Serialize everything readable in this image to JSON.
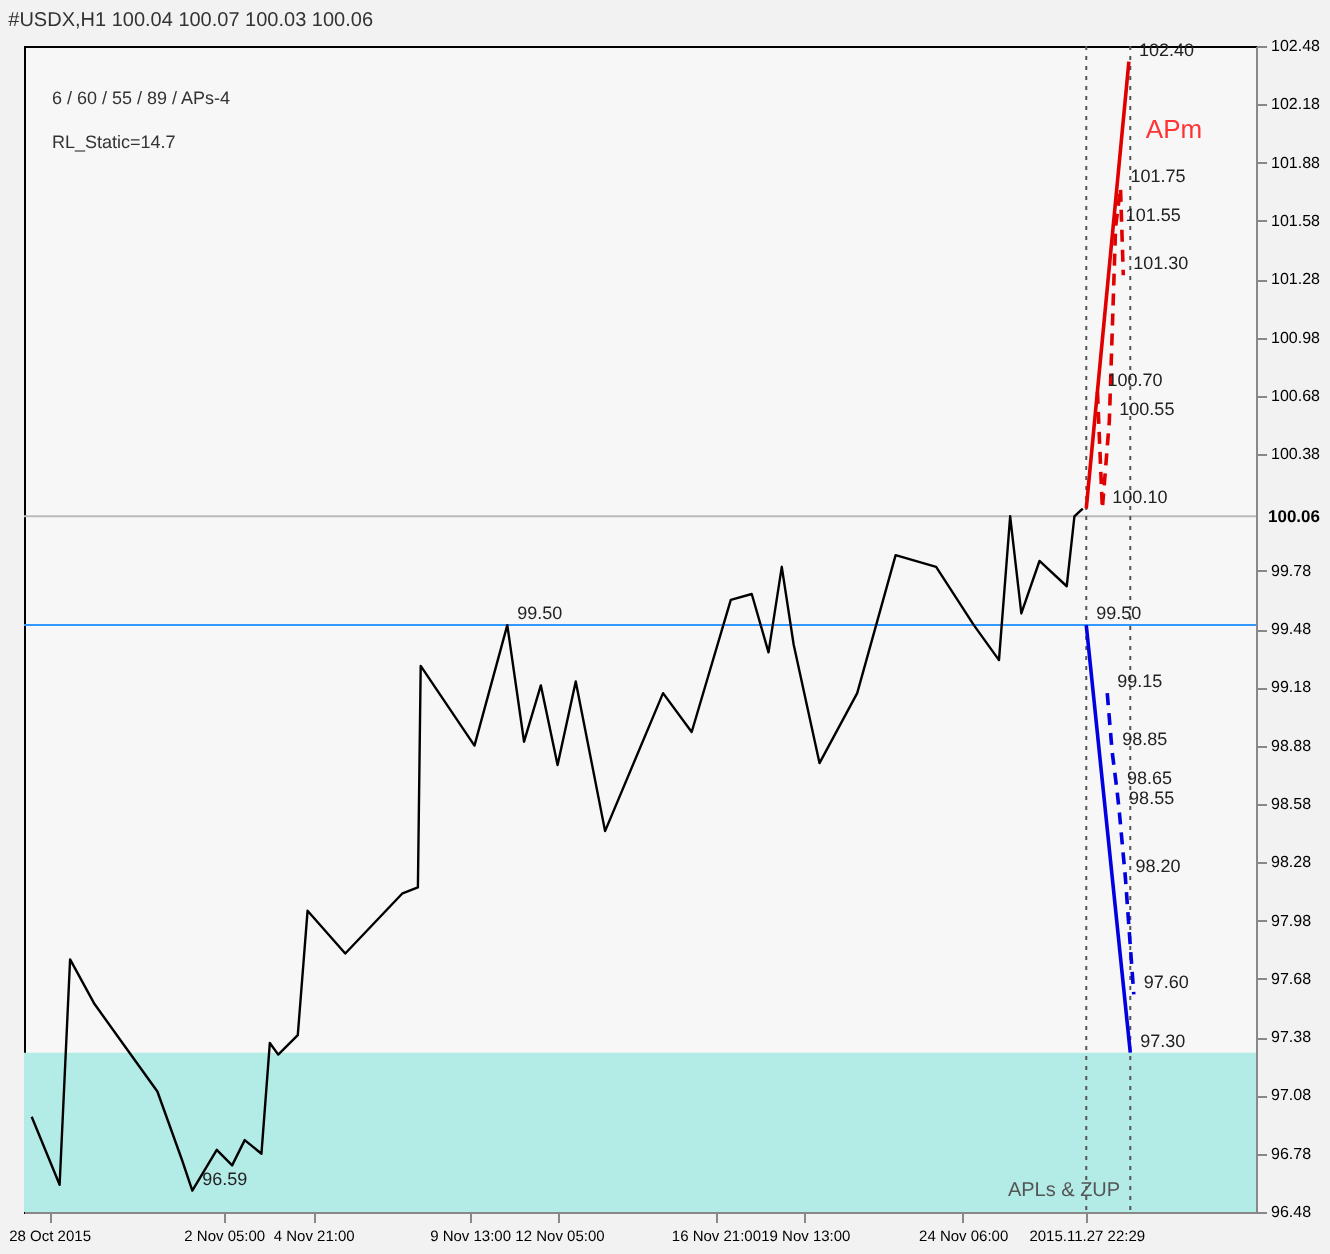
{
  "chart_data": {
    "type": "line",
    "title": "#USDX,H1  100.04 100.07 100.03 100.06",
    "xlim": [
      "2015-10-27T06:00",
      "2015-12-03T00:00"
    ],
    "ylim": [
      96.48,
      102.48
    ],
    "xticks": [
      {
        "value": "2015-10-28T00:00",
        "label": "28 Oct 2015"
      },
      {
        "value": "2015-11-02T05:00",
        "label": "2 Nov 05:00"
      },
      {
        "value": "2015-11-04T21:00",
        "label": "4 Nov 21:00"
      },
      {
        "value": "2015-11-09T13:00",
        "label": "9 Nov 13:00"
      },
      {
        "value": "2015-11-12T05:00",
        "label": "12 Nov 05:00"
      },
      {
        "value": "2015-11-16T21:00",
        "label": "16 Nov 21:00"
      },
      {
        "value": "2015-11-19T13:00",
        "label": "19 Nov 13:00"
      },
      {
        "value": "2015-11-24T06:00",
        "label": "24 Nov 06:00"
      },
      {
        "value": "2015-11-27T22:29",
        "label": "2015.11.27 22:29"
      }
    ],
    "yticks": [
      96.48,
      96.78,
      97.08,
      97.38,
      97.68,
      97.98,
      98.28,
      98.58,
      98.88,
      99.18,
      99.48,
      99.78,
      100.38,
      100.68,
      100.98,
      101.28,
      101.58,
      101.88,
      102.18,
      102.48
    ],
    "grid": false,
    "series": [
      {
        "color": "#000000",
        "x": [
          "2015-10-27T11:30",
          "2015-10-28T07:30",
          "2015-10-28T15:00",
          "2015-10-29T08:30",
          "2015-10-30T04:30",
          "2015-10-31T05:30",
          "2015-10-31T23:00",
          "2015-11-01T06:30",
          "2015-11-02T00:00",
          "2015-11-02T11:00",
          "2015-11-02T20:00",
          "2015-11-03T08:00",
          "2015-11-03T14:00",
          "2015-11-03T20:00",
          "2015-11-04T10:00",
          "2015-11-04T17:00",
          "2015-11-05T20:00",
          "2015-11-07T13:00",
          "2015-11-08T00:00",
          "2015-11-08T02:00",
          "2015-11-09T16:30",
          "2015-11-10T16:00",
          "2015-11-11T04:00",
          "2015-11-11T16:00",
          "2015-11-12T04:00",
          "2015-11-12T17:00",
          "2015-11-13T14:00",
          "2015-11-15T07:30",
          "2015-11-16T04:00",
          "2015-11-17T08:00",
          "2015-11-17T23:00",
          "2015-11-18T11:00",
          "2015-11-18T20:30",
          "2015-11-19T05:00",
          "2015-11-19T23:30",
          "2015-11-21T02:30",
          "2015-11-22T06:00",
          "2015-11-23T11:00",
          "2015-11-24T14:00",
          "2015-11-25T08:00",
          "2015-11-25T16:00",
          "2015-11-26T00:00",
          "2015-11-26T13:00",
          "2015-11-27T08:30",
          "2015-11-27T14:00",
          "2015-11-27T20:00"
        ],
        "values": [
          96.97,
          96.62,
          97.78,
          97.55,
          97.35,
          97.1,
          96.75,
          96.59,
          96.8,
          96.72,
          96.85,
          96.78,
          97.35,
          97.29,
          97.39,
          98.03,
          97.81,
          98.12,
          98.15,
          99.29,
          98.88,
          99.5,
          98.9,
          99.19,
          98.78,
          99.21,
          98.44,
          99.15,
          98.95,
          99.63,
          99.66,
          99.36,
          99.8,
          99.4,
          98.79,
          99.15,
          99.86,
          99.8,
          99.5,
          99.32,
          100.06,
          99.56,
          99.83,
          99.7,
          100.06,
          100.1
        ]
      },
      {
        "color": "#e00000",
        "x": [
          "2015-11-27T22:29",
          "2015-11-29T05:00"
        ],
        "values": [
          100.1,
          102.4
        ]
      },
      {
        "color": "#e00000",
        "line_style": "dashed",
        "x": [
          "2015-11-28T10:00",
          "2015-11-28T06:30",
          "2015-11-28T15:00",
          "2015-11-28T23:00",
          "2015-11-28T19:30",
          "2015-11-29T01:00"
        ],
        "values": [
          100.1,
          100.7,
          100.55,
          101.75,
          101.55,
          101.3
        ]
      },
      {
        "color": "#0000e0",
        "x": [
          "2015-11-27T22:29",
          "2015-11-29T06:00"
        ],
        "values": [
          99.5,
          97.3
        ]
      },
      {
        "color": "#0000e0",
        "line_style": "dashed",
        "x": [
          "2015-11-28T13:30",
          "2015-11-28T17:00",
          "2015-11-28T20:30",
          "2015-11-28T22:00",
          "2015-11-29T02:30",
          "2015-11-29T08:30"
        ],
        "values": [
          99.15,
          98.85,
          98.65,
          98.55,
          98.2,
          97.6
        ]
      }
    ],
    "ref_lines": [
      {
        "axis": "y",
        "value": 100.06,
        "label": "100.06",
        "color": "#bbbbbb"
      },
      {
        "axis": "y",
        "value": 99.5,
        "color": "#3399ff"
      },
      {
        "axis": "x",
        "value": "2015-11-27T22:29",
        "color": "#555555",
        "line_style": "dotted"
      },
      {
        "axis": "x",
        "value": "2015-11-29T06:00",
        "color": "#555555",
        "line_style": "dotted"
      }
    ],
    "bands": [
      {
        "axis": "y",
        "from": 96.48,
        "to": 97.3,
        "color": "#b3ebe6"
      }
    ],
    "annotations": [
      "6 / 60 / 55 / 89 / APs-4",
      "RL_Static=14.7",
      "APm",
      "APLs & ZUP",
      {
        "text": "96.59",
        "x": "2015-11-01T06:30",
        "y": 96.59
      },
      {
        "text": "99.50",
        "x": "2015-11-10T16:00",
        "y": 99.5
      },
      {
        "text": "102.40",
        "x": "2015-11-29T05:00",
        "y": 102.4
      },
      {
        "text": "101.75",
        "x": "2015-11-28T23:00",
        "y": 101.75
      },
      {
        "text": "101.55",
        "x": "2015-11-28T19:30",
        "y": 101.55
      },
      {
        "text": "101.30",
        "x": "2015-11-29T01:00",
        "y": 101.3
      },
      {
        "text": "100.70",
        "x": "2015-11-28T06:30",
        "y": 100.7
      },
      {
        "text": "100.55",
        "x": "2015-11-28T15:00",
        "y": 100.55
      },
      {
        "text": "100.10",
        "x": "2015-11-28T10:00",
        "y": 100.1
      },
      {
        "text": "99.50",
        "x": "2015-11-27T22:29",
        "y": 99.5
      },
      {
        "text": "99.15",
        "x": "2015-11-28T13:30",
        "y": 99.15
      },
      {
        "text": "98.85",
        "x": "2015-11-28T17:00",
        "y": 98.85
      },
      {
        "text": "98.65",
        "x": "2015-11-28T20:30",
        "y": 98.65
      },
      {
        "text": "98.55",
        "x": "2015-11-28T22:00",
        "y": 98.55
      },
      {
        "text": "98.20",
        "x": "2015-11-29T02:30",
        "y": 98.2
      },
      {
        "text": "97.60",
        "x": "2015-11-29T08:30",
        "y": 97.6
      },
      {
        "text": "97.30",
        "x": "2015-11-29T06:00",
        "y": 97.3
      }
    ]
  }
}
